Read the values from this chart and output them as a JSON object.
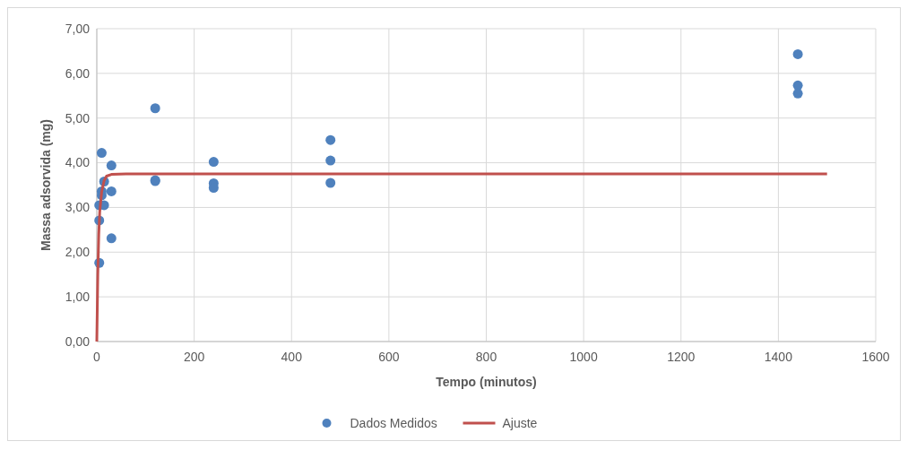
{
  "chart_data": {
    "type": "scatter",
    "xlabel": "Tempo (minutos)",
    "ylabel": "Massa adsorvida (mg)",
    "xlim": [
      0,
      1600
    ],
    "xticks": [
      0,
      200,
      400,
      600,
      800,
      1000,
      1200,
      1400,
      1600
    ],
    "ylim": [
      0,
      7
    ],
    "yticks": [
      {
        "value": 0,
        "label": "0,00"
      },
      {
        "value": 1,
        "label": "1,00"
      },
      {
        "value": 2,
        "label": "2,00"
      },
      {
        "value": 3,
        "label": "3,00"
      },
      {
        "value": 4,
        "label": "4,00"
      },
      {
        "value": 5,
        "label": "5,00"
      },
      {
        "value": 6,
        "label": "6,00"
      },
      {
        "value": 7,
        "label": "7,00"
      }
    ],
    "grid": true,
    "legend": "bottom",
    "series": [
      {
        "name": "Dados Medidos",
        "marker": "circle",
        "color": "#4f81bd",
        "x": [
          5,
          5,
          5,
          10,
          10,
          10,
          15,
          15,
          30,
          30,
          30,
          120,
          120,
          120,
          240,
          240,
          240,
          480,
          480,
          480,
          1440,
          1440,
          1440
        ],
        "values": [
          1.76,
          2.71,
          3.05,
          4.22,
          3.36,
          3.27,
          3.58,
          3.05,
          3.94,
          3.36,
          2.31,
          5.22,
          3.61,
          3.59,
          4.02,
          3.54,
          3.44,
          4.51,
          4.05,
          3.55,
          6.43,
          5.73,
          5.55
        ]
      },
      {
        "name": "Ajuste",
        "type": "line",
        "marker": "none",
        "line_style": "solid",
        "color": "#c0504d",
        "x": [
          0,
          2,
          4,
          6,
          10,
          15,
          20,
          30,
          60,
          1500
        ],
        "values": [
          0,
          1.5,
          2.4,
          2.9,
          3.35,
          3.6,
          3.7,
          3.74,
          3.75,
          3.75
        ]
      }
    ]
  }
}
